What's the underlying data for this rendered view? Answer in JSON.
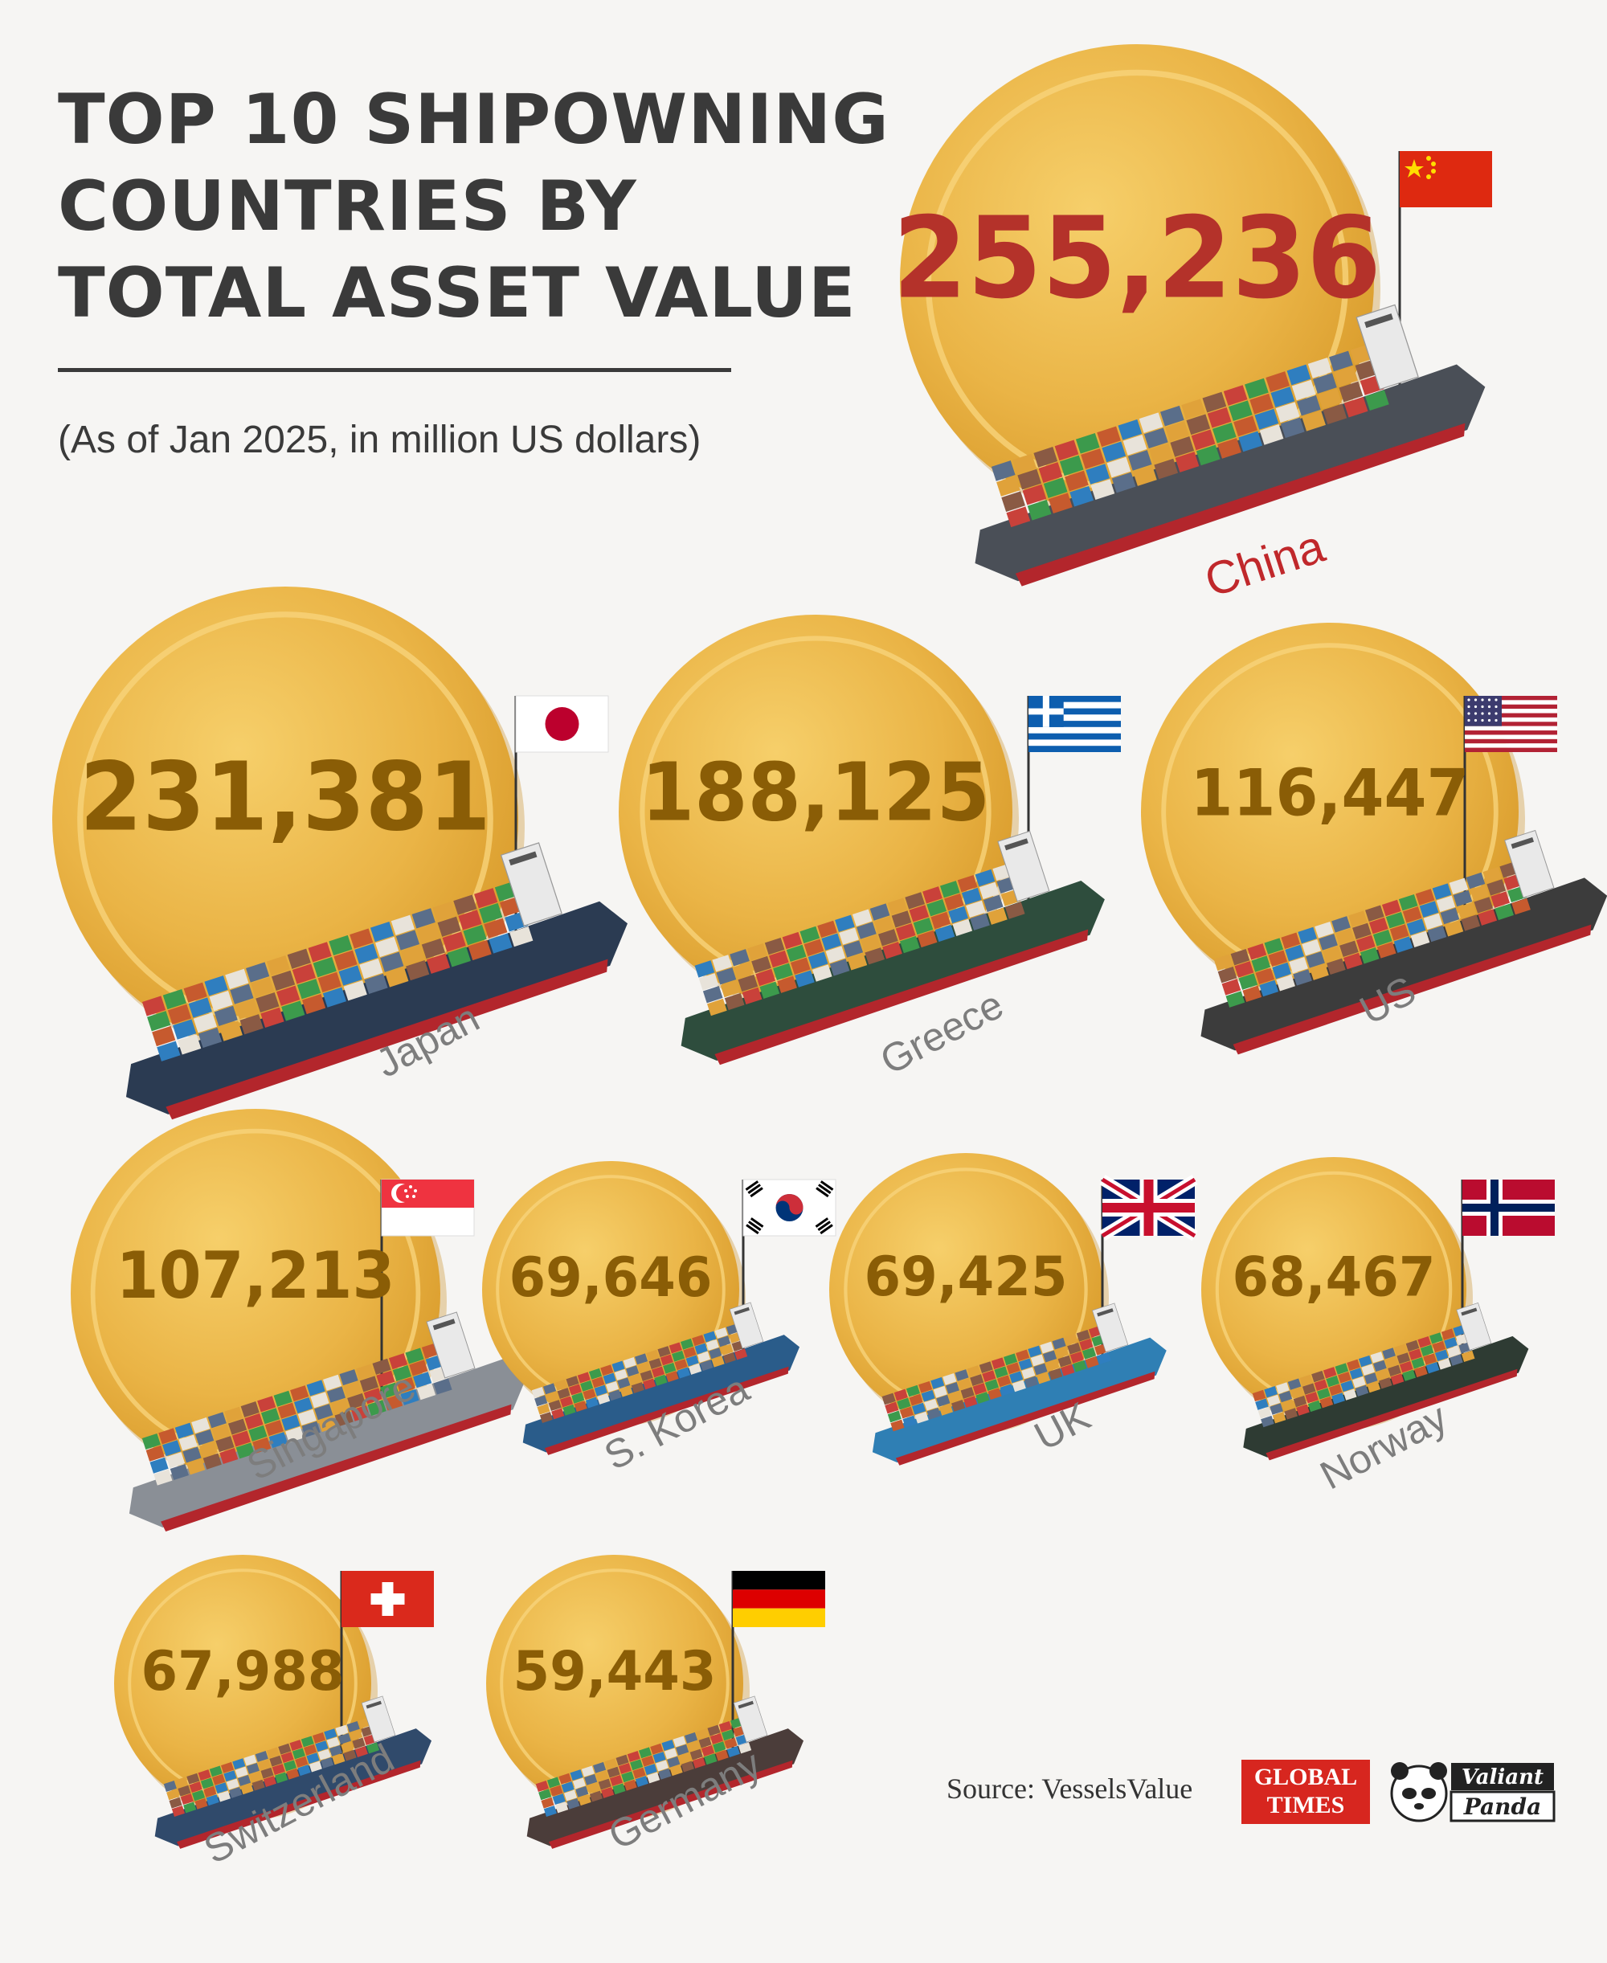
{
  "title_lines": [
    "TOP 10 SHIPOWNING",
    "COUNTRIES BY",
    "TOTAL ASSET VALUE"
  ],
  "subtitle": "(As of Jan 2025, in million US dollars)",
  "source": "Source: VesselsValue",
  "logos": {
    "global_times_line1": "GLOBAL",
    "global_times_line2": "TIMES",
    "valiant_panda_line1": "Valiant",
    "valiant_panda_line2": "Panda"
  },
  "colors": {
    "coin": "#e9b23f",
    "coin_rim": "#f4cd6b",
    "value_text": "#8a5d06",
    "china_value": "#b4322a",
    "label_text": "#7d7d7d",
    "china_label": "#c0282b"
  },
  "chart_data": {
    "type": "bubble",
    "categories": [
      "China",
      "Japan",
      "Greece",
      "US",
      "Singapore",
      "S. Korea",
      "UK",
      "Norway",
      "Switzerland",
      "Germany"
    ],
    "values": [
      255236,
      231381,
      188125,
      116447,
      107213,
      69646,
      69425,
      68467,
      67988,
      59443
    ],
    "value_labels": [
      "255,236",
      "231,381",
      "188,125",
      "116,447",
      "107,213",
      "69,646",
      "69,425",
      "68,467",
      "67,988",
      "59,443"
    ],
    "flags": [
      "china-flag",
      "japan-flag",
      "greece-flag",
      "us-flag",
      "singapore-flag",
      "south-korea-flag",
      "uk-flag",
      "norway-flag",
      "switzerland-flag",
      "germany-flag"
    ],
    "unit": "million US dollars"
  }
}
